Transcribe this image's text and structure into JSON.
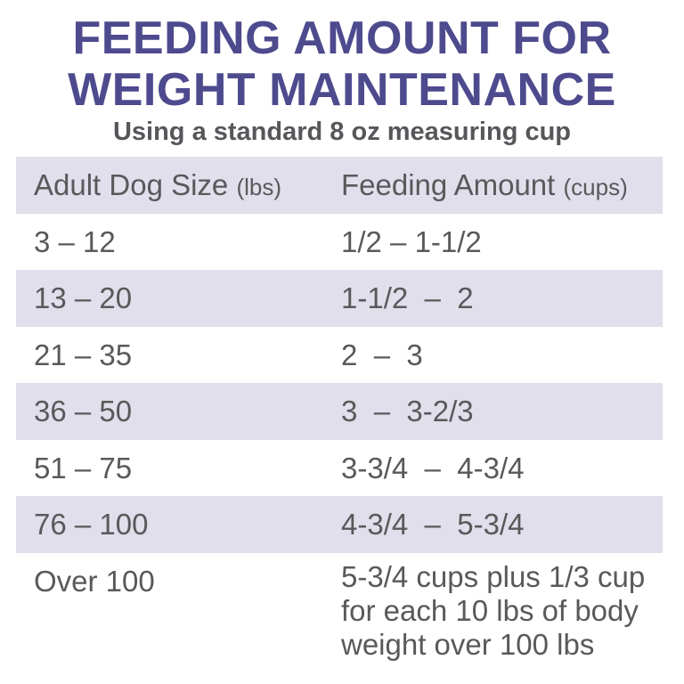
{
  "title": {
    "line1": "FEEDING AMOUNT FOR",
    "line2": "WEIGHT MAINTENANCE"
  },
  "subtitle": "Using a standard 8 oz measuring cup",
  "table": {
    "headers": [
      {
        "label": "Adult Dog Size",
        "unit": "(lbs)"
      },
      {
        "label": "Feeding Amount",
        "unit": "(cups)"
      }
    ],
    "rows": [
      [
        "3 – 12",
        "1/2 – 1-1/2"
      ],
      [
        "13 – 20",
        "1-1/2  –  2"
      ],
      [
        "21 – 35",
        "2  –  3"
      ],
      [
        "36 – 50",
        "3  –  3-2/3"
      ],
      [
        "51 – 75",
        "3-3/4  –  4-3/4"
      ],
      [
        "76 – 100",
        "4-3/4  –  5-3/4"
      ],
      [
        "Over 100",
        "5-3/4 cups plus 1/3 cup for each 10 lbs of body weight over 100 lbs"
      ]
    ]
  },
  "colors": {
    "title": "#4e4a8e",
    "text": "#58595b",
    "shaded_row": "#e0dfeb"
  }
}
